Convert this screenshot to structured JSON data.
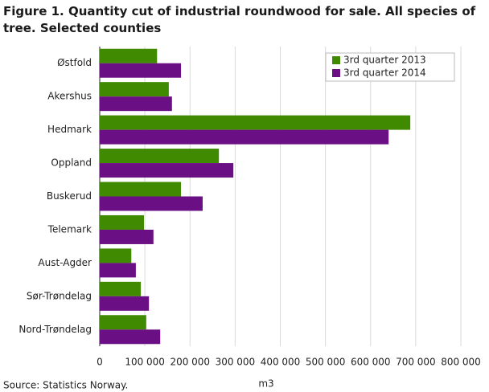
{
  "chart_data": {
    "type": "hbar",
    "title": "Figure 1. Quantity cut of industrial roundwood for sale. All species of tree. Selected counties",
    "source": "Source: Statistics Norway.",
    "xlabel": "m3",
    "categories": [
      "Østfold",
      "Akershus",
      "Hedmark",
      "Oppland",
      "Buskerud",
      "Telemark",
      "Aust-Agder",
      "Sør-Trøndelag",
      "Nord-Trøndelag"
    ],
    "series": [
      {
        "name": "3rd quarter 2013",
        "color": "#3f8a00",
        "values": [
          127000,
          153000,
          688000,
          264000,
          180000,
          98000,
          70000,
          91000,
          103000
        ]
      },
      {
        "name": "3rd quarter 2014",
        "color": "#6b0f84",
        "values": [
          180000,
          160000,
          640000,
          296000,
          228000,
          119000,
          80000,
          109000,
          134000
        ]
      }
    ],
    "xlim": [
      0,
      800000
    ],
    "xticks": [
      0,
      {
        "value": 100000,
        "label": "100 000"
      },
      {
        "value": 200000,
        "label": "200 000"
      },
      {
        "value": 300000,
        "label": "300 000"
      },
      {
        "value": 400000,
        "label": "400 000"
      },
      {
        "value": 500000,
        "label": "500 000"
      },
      {
        "value": 600000,
        "label": "600 000"
      },
      {
        "value": 700000,
        "label": "700 000"
      },
      {
        "value": 800000,
        "label": "800 000"
      }
    ],
    "grid": true,
    "legend": "top-right"
  }
}
